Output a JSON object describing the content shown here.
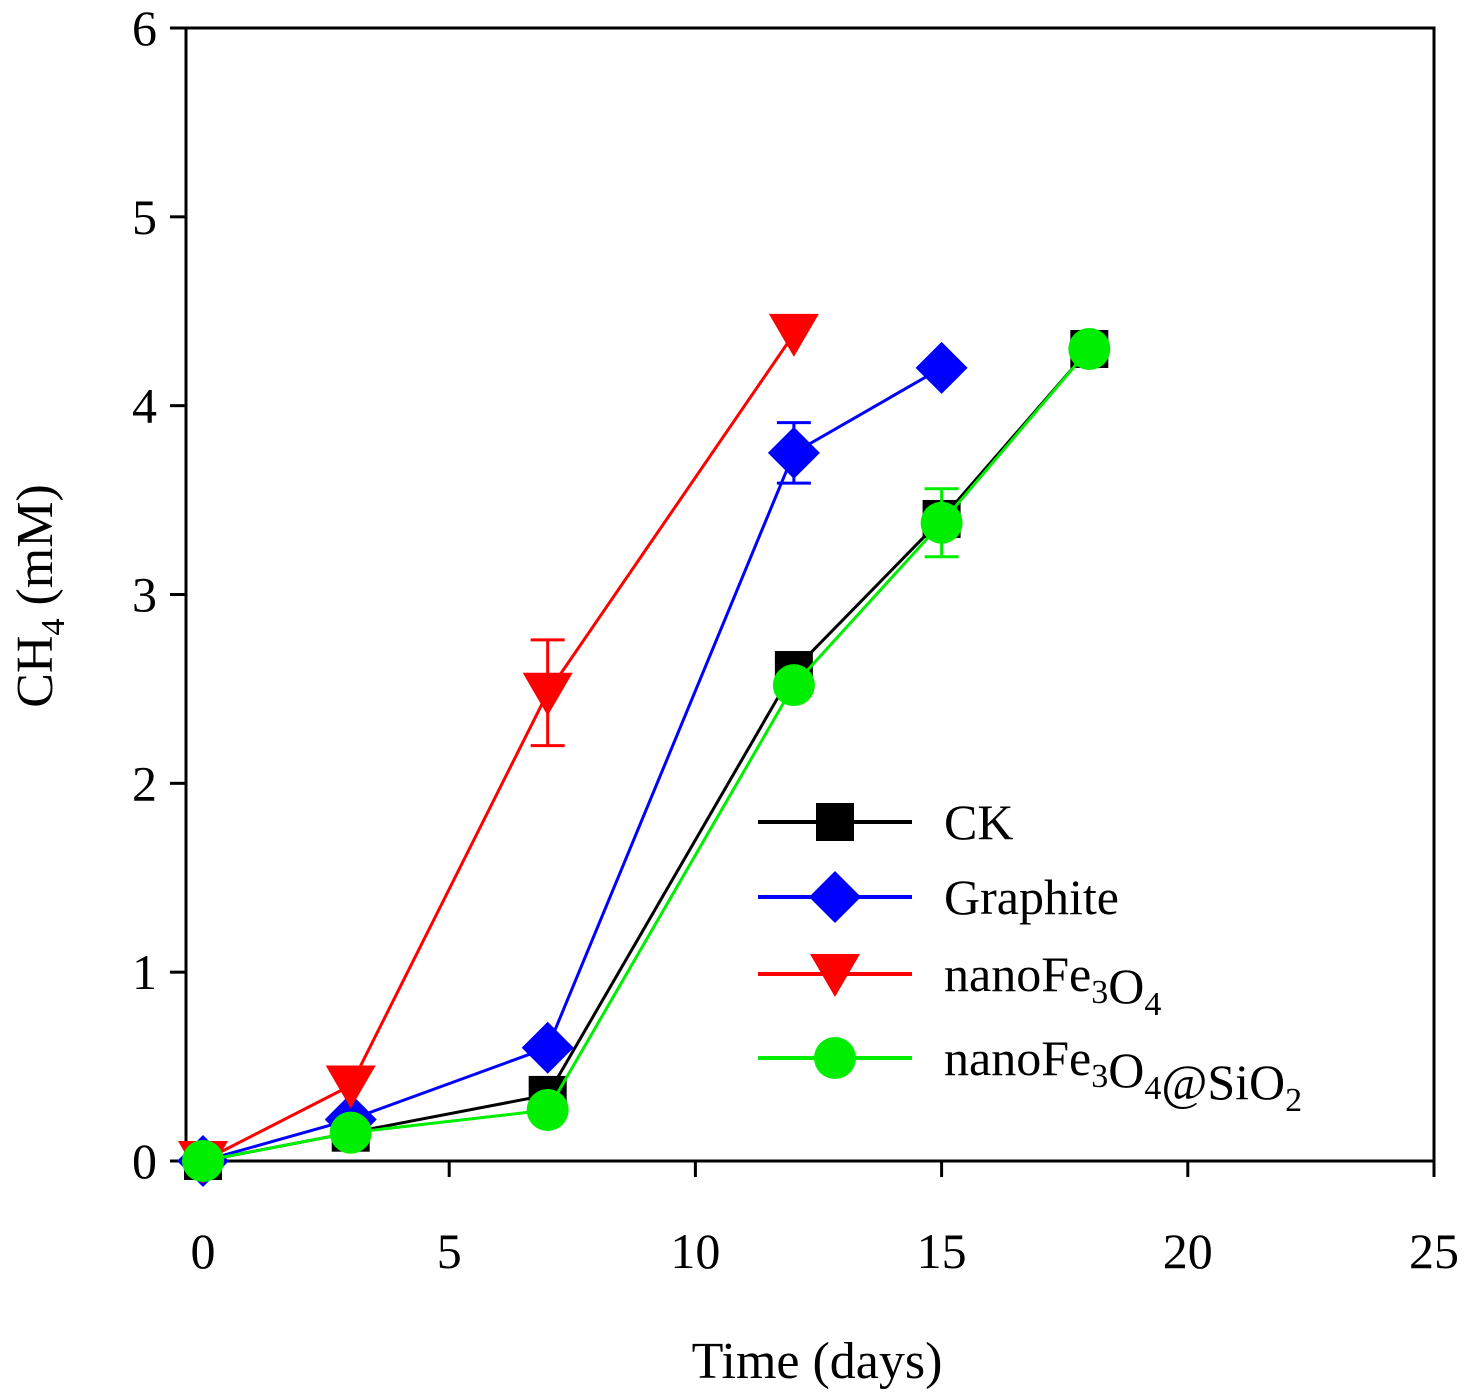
{
  "chart_data": {
    "type": "line",
    "title": "",
    "xlabel": "Time (days)",
    "ylabel": {
      "prefix": "CH",
      "sub": "4",
      "suffix": " (mM)"
    },
    "xlim": [
      0,
      25
    ],
    "ylim": [
      0,
      6
    ],
    "xticks": [
      0,
      5,
      10,
      15,
      20,
      25
    ],
    "yticks": [
      0,
      1,
      2,
      3,
      4,
      5,
      6
    ],
    "grid": false,
    "legend_position": "bottom-right",
    "series": [
      {
        "name": "CK",
        "label_parts": [
          {
            "t": "CK",
            "sub": false
          }
        ],
        "color": "#000000",
        "marker": "square",
        "x": [
          0,
          3,
          7,
          12,
          15,
          18
        ],
        "y": [
          0,
          0.15,
          0.35,
          2.6,
          3.4,
          4.3
        ],
        "err": [
          0,
          0,
          0,
          0,
          0,
          0
        ]
      },
      {
        "name": "Graphite",
        "label_parts": [
          {
            "t": "Graphite",
            "sub": false
          }
        ],
        "color": "#0000ff",
        "marker": "diamond",
        "x": [
          0,
          3,
          7,
          12,
          15
        ],
        "y": [
          0,
          0.22,
          0.6,
          3.75,
          4.2
        ],
        "err": [
          0,
          0,
          0,
          0.16,
          0
        ]
      },
      {
        "name": "nanoFe3O4",
        "label_parts": [
          {
            "t": "nanoFe",
            "sub": false
          },
          {
            "t": "3",
            "sub": true
          },
          {
            "t": "O",
            "sub": false
          },
          {
            "t": "4",
            "sub": true
          }
        ],
        "color": "#ff0000",
        "marker": "triangle-down",
        "x": [
          0,
          3,
          7,
          12
        ],
        "y": [
          0,
          0.4,
          2.48,
          4.38
        ],
        "err": [
          0,
          0,
          0.28,
          0
        ]
      },
      {
        "name": "nanoFe3O4@SiO2",
        "label_parts": [
          {
            "t": "nanoFe",
            "sub": false
          },
          {
            "t": "3",
            "sub": true
          },
          {
            "t": "O",
            "sub": false
          },
          {
            "t": "4",
            "sub": true
          },
          {
            "t": "@SiO",
            "sub": false
          },
          {
            "t": "2",
            "sub": true
          }
        ],
        "color": "#00ee00",
        "marker": "circle",
        "x": [
          0,
          3,
          7,
          12,
          15,
          18
        ],
        "y": [
          0,
          0.15,
          0.27,
          2.52,
          3.38,
          4.3
        ],
        "err": [
          0,
          0,
          0,
          0,
          0.18,
          0
        ]
      }
    ]
  }
}
